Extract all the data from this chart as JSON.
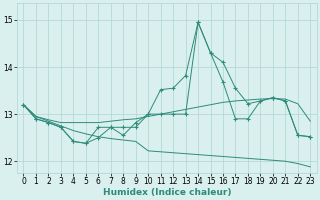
{
  "xlabel": "Humidex (Indice chaleur)",
  "x": [
    0,
    1,
    2,
    3,
    4,
    5,
    6,
    7,
    8,
    9,
    10,
    11,
    12,
    13,
    14,
    15,
    16,
    17,
    18,
    19,
    20,
    21,
    22,
    23
  ],
  "line1": [
    13.2,
    12.9,
    12.82,
    12.72,
    12.42,
    12.38,
    12.5,
    12.72,
    12.55,
    12.82,
    13.0,
    13.52,
    13.55,
    13.82,
    14.95,
    14.3,
    14.1,
    13.55,
    13.22,
    13.28,
    13.35,
    13.28,
    12.55,
    12.52
  ],
  "line2": [
    13.2,
    12.9,
    12.82,
    12.72,
    12.42,
    12.38,
    12.72,
    12.72,
    12.72,
    12.72,
    13.0,
    13.0,
    13.0,
    13.0,
    14.95,
    14.3,
    13.68,
    12.9,
    12.9,
    13.28,
    13.35,
    13.28,
    12.55,
    12.52
  ],
  "line3_upper": [
    13.2,
    12.95,
    12.88,
    12.82,
    12.82,
    12.82,
    12.82,
    12.85,
    12.88,
    12.9,
    12.95,
    13.0,
    13.05,
    13.1,
    13.15,
    13.2,
    13.25,
    13.28,
    13.3,
    13.32,
    13.33,
    13.32,
    13.22,
    12.85
  ],
  "line3_lower": [
    13.2,
    12.95,
    12.85,
    12.75,
    12.65,
    12.58,
    12.52,
    12.48,
    12.45,
    12.42,
    12.22,
    12.2,
    12.18,
    12.16,
    12.14,
    12.12,
    12.1,
    12.08,
    12.06,
    12.04,
    12.02,
    12.0,
    11.95,
    11.88
  ],
  "color": "#2e8b7a",
  "bg_color": "#d9f0ee",
  "grid_color": "#aed6d2",
  "ylim_bottom": 11.75,
  "ylim_top": 15.35,
  "yticks": [
    12,
    13,
    14,
    15
  ],
  "xticks": [
    0,
    1,
    2,
    3,
    4,
    5,
    6,
    7,
    8,
    9,
    10,
    11,
    12,
    13,
    14,
    15,
    16,
    17,
    18,
    19,
    20,
    21,
    22,
    23
  ],
  "tick_fontsize": 5.5,
  "xlabel_fontsize": 6.5
}
